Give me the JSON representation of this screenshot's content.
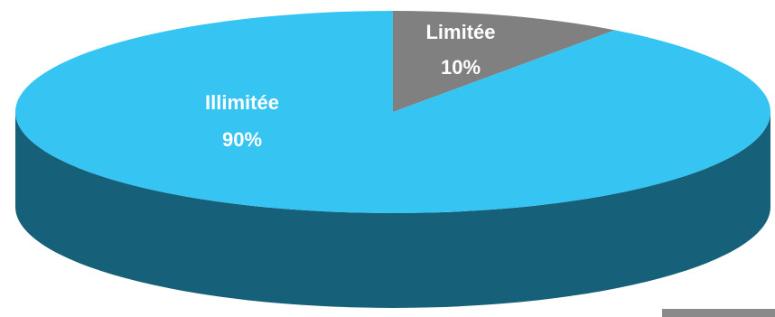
{
  "chart_data": {
    "type": "pie",
    "style": "3d",
    "title": "",
    "slices": [
      {
        "label": "Illimitée",
        "value": 90,
        "value_label": "90%",
        "color": "#36C4F2"
      },
      {
        "label": "Limitée",
        "value": 10,
        "value_label": "10%",
        "color": "#808080"
      }
    ],
    "side_colors": {
      "main": "#166079",
      "secondary": "#5a5a5a"
    },
    "legend": "none"
  }
}
